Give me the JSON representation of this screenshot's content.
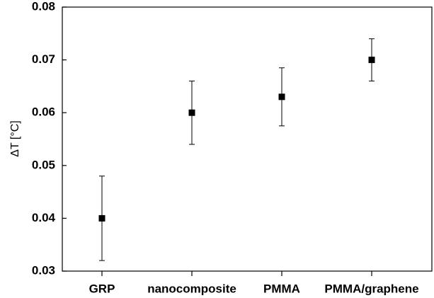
{
  "chart_data": {
    "type": "scatter",
    "y_label": "ΔT [°C]",
    "categories": [
      "GRP",
      "nanocomposite",
      "PMMA",
      "PMMA/graphene"
    ],
    "values": [
      0.04,
      0.06,
      0.063,
      0.07
    ],
    "errors": [
      0.008,
      0.006,
      0.0055,
      0.004
    ],
    "color": "#000000",
    "ylim": [
      0.03,
      0.08
    ],
    "yticks": [
      0.03,
      0.04,
      0.05,
      0.06,
      0.07,
      0.08
    ],
    "grid": false
  }
}
